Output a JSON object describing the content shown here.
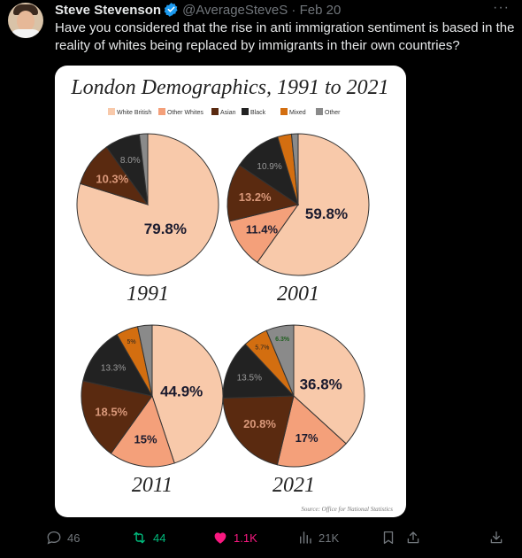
{
  "tweet": {
    "author_name": "Steve Stevenson",
    "handle": "@AverageSteveS",
    "separator": "·",
    "date": "Feb 20",
    "text": "Have you considered that the rise in anti immigration sentiment is based in the reality of whites being replaced by immigrants in their own countries?"
  },
  "actions": {
    "replies": "46",
    "retweets": "44",
    "likes": "1.1K",
    "views": "21K"
  },
  "colors": {
    "background": "#000000",
    "retweet_active": "#00ba7c",
    "like_active": "#f91880",
    "verified": "#1d9bf0",
    "muted": "#71767b"
  },
  "chart_data": {
    "type": "pie",
    "title": "London Demographics, 1991 to 2021",
    "source": "Source: Office for National Statistics",
    "legend": {
      "placement": "top",
      "entries": [
        {
          "name": "White British",
          "color": "#f8c9aa"
        },
        {
          "name": "Other Whites",
          "color": "#f4a07a"
        },
        {
          "name": "Asian",
          "color": "#5a2a10"
        },
        {
          "name": "Black",
          "color": "#222222"
        },
        {
          "name": "Mixed",
          "color": "#d36e10"
        },
        {
          "name": "Other",
          "color": "#8a8a8a"
        }
      ]
    },
    "charts": [
      {
        "year": "1991",
        "slices": [
          {
            "category": "White British",
            "value": 79.8,
            "label": "79.8%"
          },
          {
            "category": "Other Whites",
            "value": 0,
            "label": ""
          },
          {
            "category": "Asian",
            "value": 10.3,
            "label": "10.3%"
          },
          {
            "category": "Black",
            "value": 8.0,
            "label": "8.0%"
          },
          {
            "category": "Mixed",
            "value": 0,
            "label": ""
          },
          {
            "category": "Other",
            "value": 1.9,
            "label": ""
          }
        ]
      },
      {
        "year": "2001",
        "slices": [
          {
            "category": "White British",
            "value": 59.8,
            "label": "59.8%"
          },
          {
            "category": "Other Whites",
            "value": 11.4,
            "label": "11.4%"
          },
          {
            "category": "Asian",
            "value": 13.2,
            "label": "13.2%"
          },
          {
            "category": "Black",
            "value": 10.9,
            "label": "10.9%"
          },
          {
            "category": "Mixed",
            "value": 3.2,
            "label": ""
          },
          {
            "category": "Other",
            "value": 1.5,
            "label": ""
          }
        ]
      },
      {
        "year": "2011",
        "slices": [
          {
            "category": "White British",
            "value": 44.9,
            "label": "44.9%"
          },
          {
            "category": "Other Whites",
            "value": 15,
            "label": "15%"
          },
          {
            "category": "Asian",
            "value": 18.5,
            "label": "18.5%"
          },
          {
            "category": "Black",
            "value": 13.3,
            "label": "13.3%"
          },
          {
            "category": "Mixed",
            "value": 5,
            "label": "5%"
          },
          {
            "category": "Other",
            "value": 3.3,
            "label": ""
          }
        ]
      },
      {
        "year": "2021",
        "slices": [
          {
            "category": "White British",
            "value": 36.8,
            "label": "36.8%"
          },
          {
            "category": "Other Whites",
            "value": 17,
            "label": "17%"
          },
          {
            "category": "Asian",
            "value": 20.8,
            "label": "20.8%"
          },
          {
            "category": "Black",
            "value": 13.5,
            "label": "13.5%"
          },
          {
            "category": "Mixed",
            "value": 5.7,
            "label": "5.7%"
          },
          {
            "category": "Other",
            "value": 6.3,
            "label": "6.3%"
          }
        ]
      }
    ]
  }
}
